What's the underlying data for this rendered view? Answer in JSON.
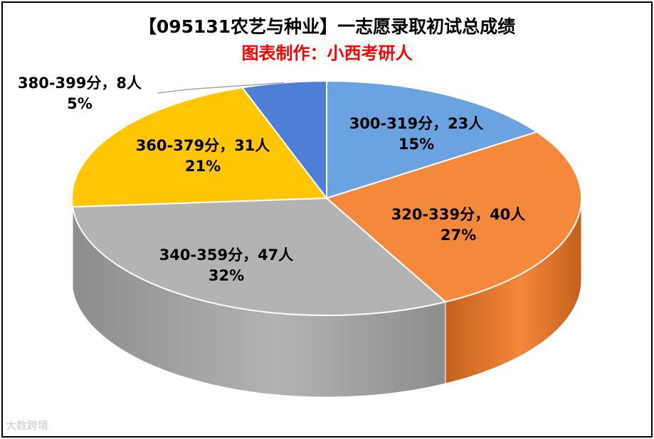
{
  "title": "【095131农艺与种业】一志愿录取初试总成绩",
  "subtitle": "图表制作：小西考研人",
  "watermark": "大数跨境",
  "chart_data": {
    "type": "pie",
    "style": "3d",
    "slices": [
      {
        "label": "300-319分",
        "count": 23,
        "percent": "15%",
        "color": "#6aa3e0",
        "side_color": "#4a7fb8"
      },
      {
        "label": "320-339分",
        "count": 40,
        "percent": "27%",
        "color": "#f4883b",
        "side_color": "#c4601c"
      },
      {
        "label": "340-359分",
        "count": 47,
        "percent": "32%",
        "color": "#b3b3b3",
        "side_color": "#8d8d8d"
      },
      {
        "label": "360-379分",
        "count": 31,
        "percent": "21%",
        "color": "#ffc605",
        "side_color": "#c99a00"
      },
      {
        "label": "380-399分",
        "count": 8,
        "percent": "5%",
        "color": "#4e7fd4",
        "side_color": "#375da0"
      }
    ],
    "unit": "人",
    "separator": "，"
  }
}
